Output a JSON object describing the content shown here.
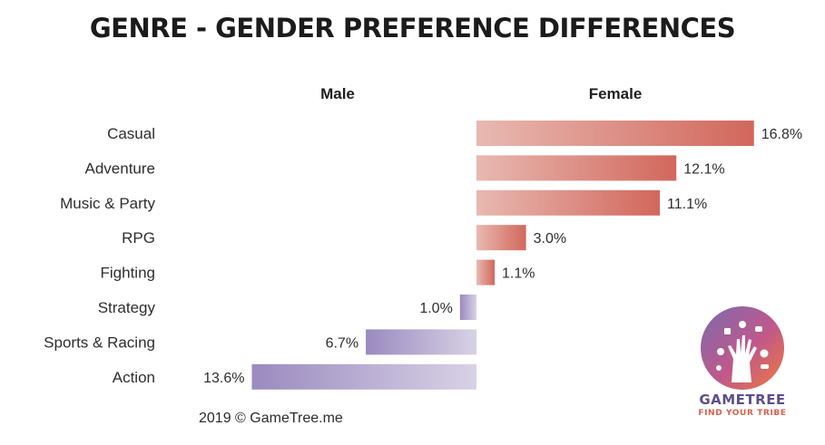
{
  "title": "GENRE - GENDER PREFERENCE DIFFERENCES",
  "footer": "2019 © GameTree.me",
  "logo": {
    "name": "GAMETREE",
    "tagline": "FIND YOUR TRIBE"
  },
  "chart_data": {
    "type": "bar",
    "orientation": "horizontal",
    "layout": "diverging",
    "column_headers": {
      "left": "Male",
      "right": "Female"
    },
    "categories": [
      "Casual",
      "Adventure",
      "Music & Party",
      "RPG",
      "Fighting",
      "Strategy",
      "Sports & Racing",
      "Action"
    ],
    "values": [
      16.8,
      12.1,
      11.1,
      3.0,
      1.1,
      1.0,
      6.7,
      13.6
    ],
    "value_labels": [
      "16.8%",
      "12.1%",
      "11.1%",
      "3.0%",
      "1.1%",
      "1.0%",
      "6.7%",
      "13.6%"
    ],
    "side": [
      "Female",
      "Female",
      "Female",
      "Female",
      "Female",
      "Male",
      "Male",
      "Male"
    ],
    "unit": "%",
    "colors": {
      "female_light": "#e8b9b1",
      "female_dark": "#d2675c",
      "male_light": "#d8d2e6",
      "male_dark": "#9a8abf"
    },
    "grid": false
  }
}
